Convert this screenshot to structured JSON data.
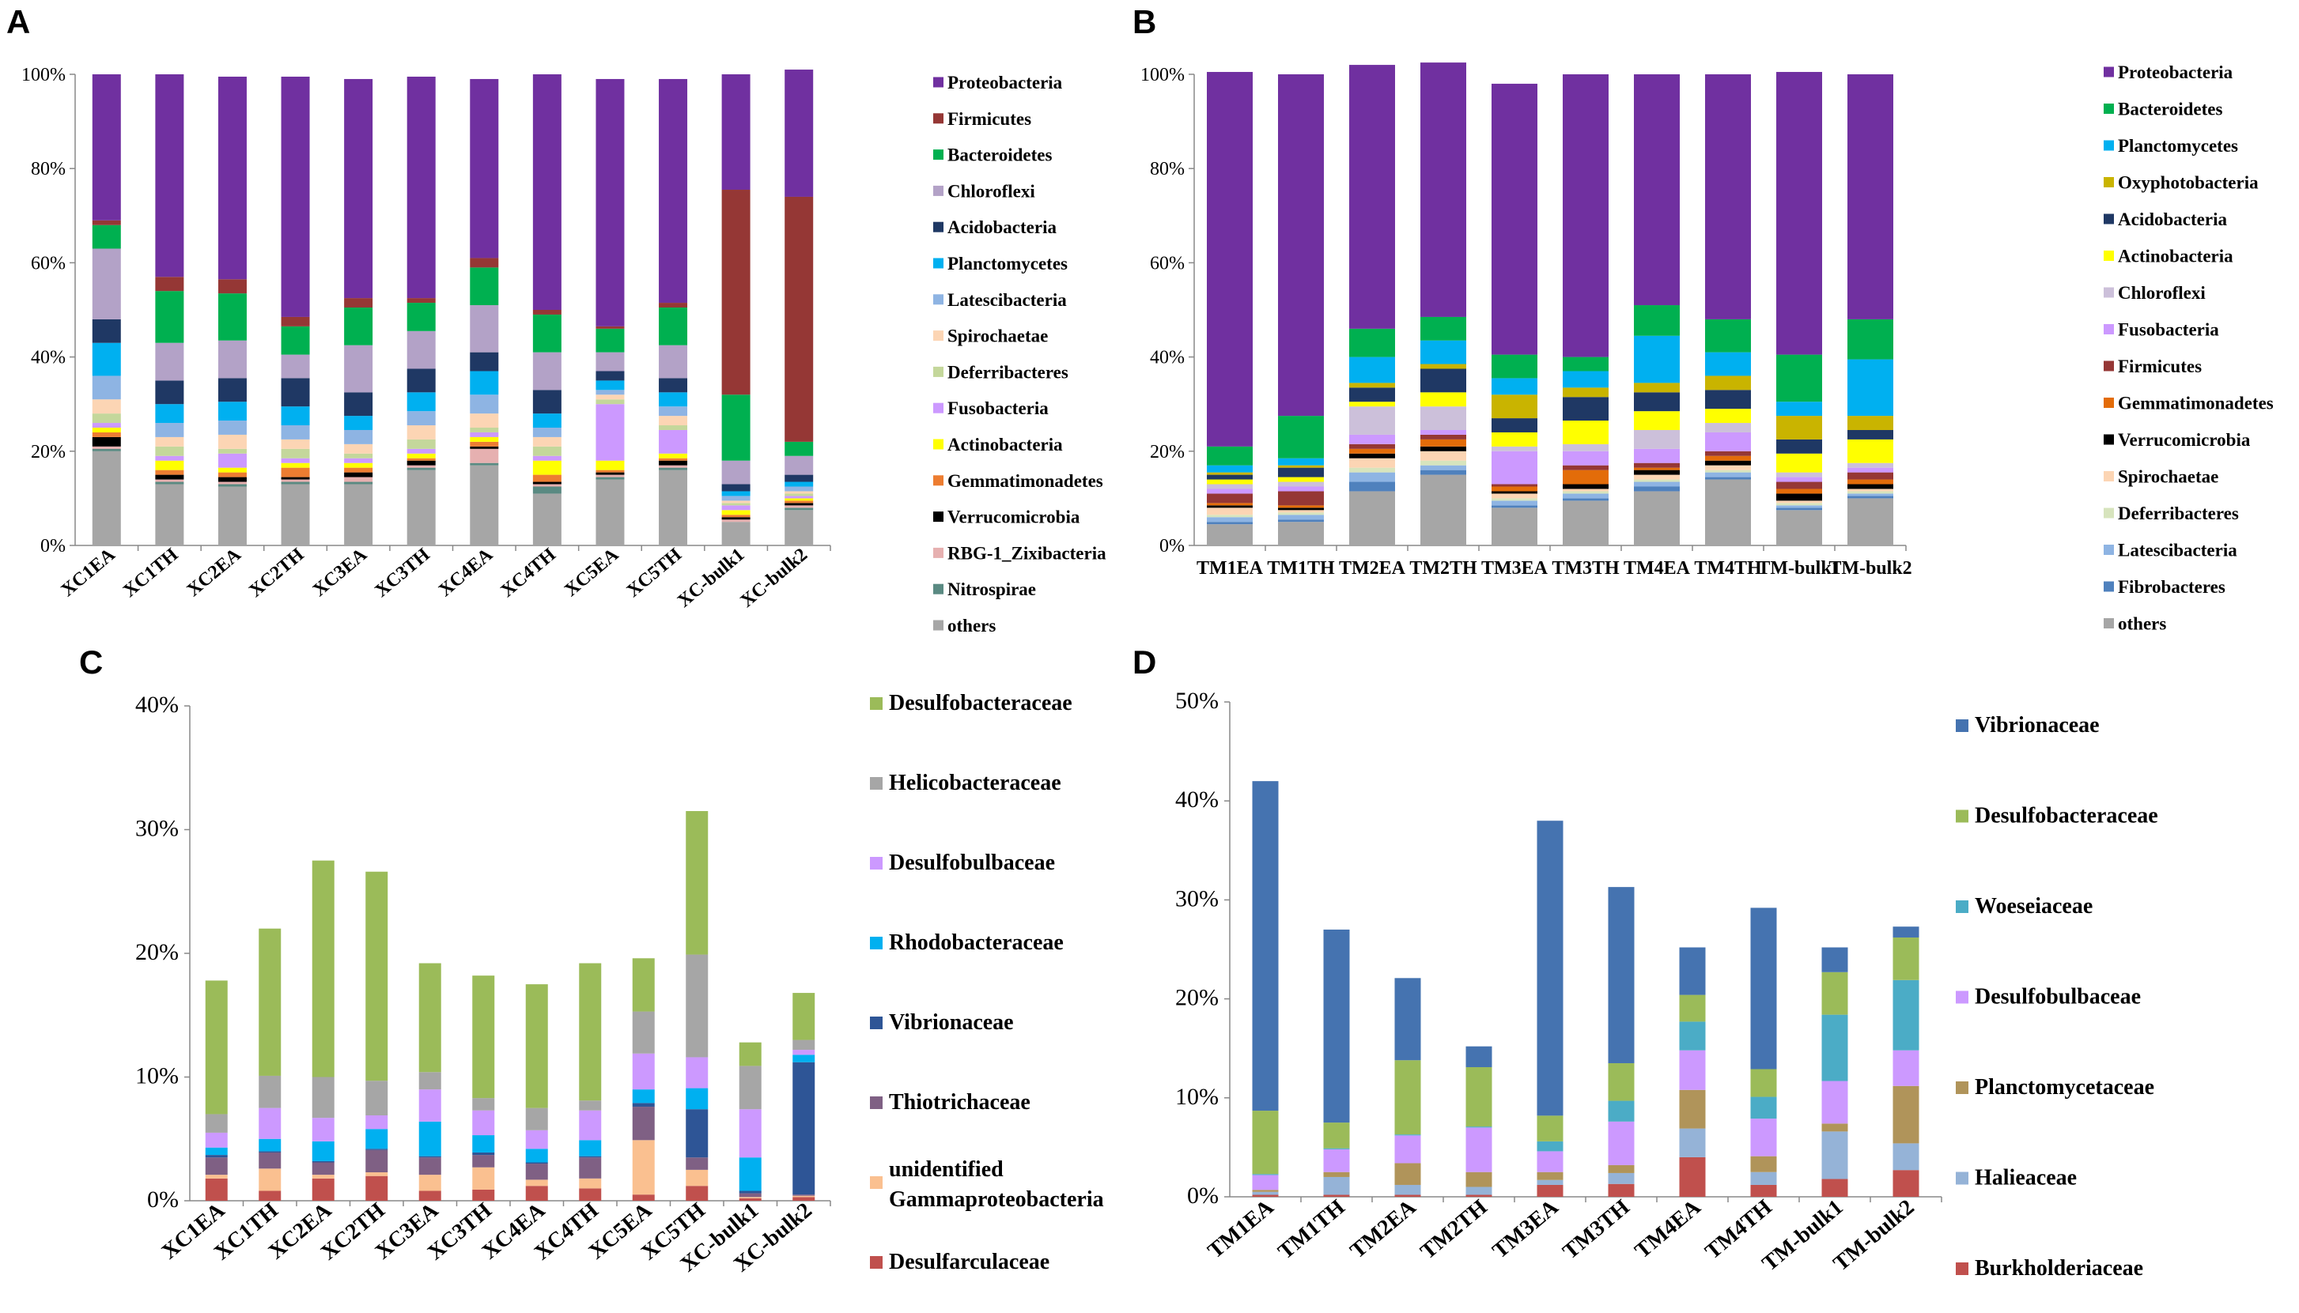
{
  "chart_data": [
    {
      "panel": "A",
      "type": "bar",
      "stacked": true,
      "ylim": [
        0,
        100
      ],
      "yticks": [
        "0%",
        "20%",
        "40%",
        "60%",
        "80%",
        "100%"
      ],
      "categories": [
        "XC1EA",
        "XC1TH",
        "XC2EA",
        "XC2TH",
        "XC3EA",
        "XC3TH",
        "XC4EA",
        "XC4TH",
        "XC5EA",
        "XC5TH",
        "XC-bulk1",
        "XC-bulk2"
      ],
      "series": [
        {
          "name": "others",
          "color": "#a6a6a6",
          "values": [
            20,
            13,
            12.5,
            13,
            13,
            16,
            17,
            11,
            14,
            16,
            5,
            7.5
          ]
        },
        {
          "name": "Nitrospirae",
          "color": "#5a8a82",
          "values": [
            0.5,
            0.5,
            0.5,
            0.5,
            0.5,
            0.5,
            0.5,
            1.5,
            0.5,
            0.5,
            0,
            0.5
          ]
        },
        {
          "name": "RBG-1_Zixibacteria",
          "color": "#e6b0b0",
          "values": [
            0.5,
            0.5,
            0.5,
            0.5,
            1,
            0.5,
            3,
            0.5,
            0.5,
            0.5,
            0.5,
            0.5
          ]
        },
        {
          "name": "Verrucomicrobia",
          "color": "#000000",
          "values": [
            2,
            1,
            1,
            0.5,
            1,
            1,
            0.5,
            0.5,
            0.5,
            1,
            0.5,
            0.5
          ]
        },
        {
          "name": "Gemmatimonadetes",
          "color": "#ed7d31",
          "values": [
            1,
            1,
            1,
            2,
            1,
            0.5,
            1,
            1.5,
            0.5,
            0.5,
            0.5,
            0.5
          ]
        },
        {
          "name": "Actinobacteria",
          "color": "#ffff00",
          "values": [
            1,
            2,
            1,
            1,
            1,
            1,
            1,
            3,
            2,
            1,
            1,
            0.5
          ]
        },
        {
          "name": "Fusobacteria",
          "color": "#cc99ff",
          "values": [
            1,
            1,
            3,
            1,
            1,
            1,
            1,
            1,
            12,
            5,
            1,
            0.5
          ]
        },
        {
          "name": "Deferribacteres",
          "color": "#c4d79b",
          "values": [
            2,
            2,
            1,
            2,
            1,
            2,
            1,
            2,
            1,
            1,
            0.5,
            0.5
          ]
        },
        {
          "name": "Spirochaetae",
          "color": "#fcd5b4",
          "values": [
            3,
            2,
            3,
            2,
            2,
            3,
            3,
            2,
            1,
            2,
            0.5,
            0.5
          ]
        },
        {
          "name": "Latescibacteria",
          "color": "#8eb4e3",
          "values": [
            5,
            3,
            3,
            3,
            3,
            3,
            4,
            2,
            1,
            2,
            1,
            1
          ]
        },
        {
          "name": "Planctomycetes",
          "color": "#00b0f0",
          "values": [
            7,
            4,
            4,
            4,
            3,
            4,
            5,
            3,
            2,
            3,
            1,
            1
          ]
        },
        {
          "name": "Acidobacteria",
          "color": "#1f3864",
          "values": [
            5,
            5,
            5,
            6,
            5,
            5,
            4,
            5,
            2,
            3,
            1.5,
            1.5
          ]
        },
        {
          "name": "Chloroflexi",
          "color": "#b3a2c7",
          "values": [
            15,
            8,
            8,
            5,
            10,
            8,
            10,
            8,
            4,
            7,
            5,
            4
          ]
        },
        {
          "name": "Bacteroidetes",
          "color": "#00b050",
          "values": [
            5,
            11,
            10,
            6,
            8,
            6,
            8,
            8,
            5,
            8,
            14,
            3
          ]
        },
        {
          "name": "Firmicutes",
          "color": "#953735",
          "values": [
            1,
            3,
            3,
            2,
            2,
            1,
            2,
            1,
            0.5,
            1,
            43.5,
            52
          ]
        },
        {
          "name": "Proteobacteria",
          "color": "#7030a0",
          "values": [
            31,
            43,
            43,
            51,
            46.5,
            47,
            38,
            50,
            52.5,
            47.5,
            24.5,
            27
          ]
        }
      ]
    },
    {
      "panel": "B",
      "type": "bar",
      "stacked": true,
      "ylim": [
        0,
        100
      ],
      "yticks": [
        "0%",
        "20%",
        "40%",
        "60%",
        "80%",
        "100%"
      ],
      "categories": [
        "TM1EA",
        "TM1TH",
        "TM2EA",
        "TM2TH",
        "TM3EA",
        "TM3TH",
        "TM4EA",
        "TM4TH",
        "TM-bulk1",
        "TM-bulk2"
      ],
      "series": [
        {
          "name": "others",
          "color": "#a6a6a6",
          "values": [
            4.5,
            5,
            11.5,
            15,
            8,
            9.5,
            11.5,
            14,
            7.5,
            10
          ]
        },
        {
          "name": "Fibrobacteres",
          "color": "#4f81bd",
          "values": [
            0.5,
            0.5,
            2,
            1,
            0.5,
            0.5,
            1,
            0.5,
            0.5,
            0.5
          ]
        },
        {
          "name": "Latescibacteria",
          "color": "#8eb4e3",
          "values": [
            1,
            1,
            2,
            1,
            1,
            1,
            1,
            1,
            0.5,
            0.5
          ]
        },
        {
          "name": "Deferribacteres",
          "color": "#d7e4bd",
          "values": [
            0.5,
            0.5,
            1,
            1,
            0.5,
            0.5,
            0.5,
            0.5,
            0.5,
            0.5
          ]
        },
        {
          "name": "Spirochaetae",
          "color": "#fcd5b4",
          "values": [
            1.5,
            0.5,
            2,
            2,
            1,
            0.5,
            1,
            1,
            0.5,
            0.5
          ]
        },
        {
          "name": "Verrucomicrobia",
          "color": "#000000",
          "values": [
            0.5,
            0.5,
            1,
            1,
            0.5,
            1,
            1,
            1,
            1.5,
            1
          ]
        },
        {
          "name": "Gemmatimonadetes",
          "color": "#e36c09",
          "values": [
            0.5,
            0.5,
            1,
            1.5,
            1,
            3,
            0.5,
            1,
            1,
            1
          ]
        },
        {
          "name": "Firmicutes",
          "color": "#953735",
          "values": [
            2,
            3,
            1,
            1,
            0.5,
            1,
            1,
            1,
            1.5,
            1.5
          ]
        },
        {
          "name": "Fusobacteria",
          "color": "#cc99ff",
          "values": [
            1,
            1,
            2,
            1,
            7,
            3,
            3,
            4,
            1,
            1
          ]
        },
        {
          "name": "Chloroflexi",
          "color": "#ccc0da",
          "values": [
            1,
            1,
            6,
            5,
            1,
            1.5,
            4,
            2,
            1,
            1
          ]
        },
        {
          "name": "Actinobacteria",
          "color": "#ffff00",
          "values": [
            1,
            1,
            1,
            3,
            3,
            5,
            4,
            3,
            4,
            5
          ]
        },
        {
          "name": "Acidobacteria",
          "color": "#1f3864",
          "values": [
            1,
            2,
            3,
            5,
            3,
            5,
            4,
            4,
            3,
            2
          ]
        },
        {
          "name": "Oxyphotobacteria",
          "color": "#c9b400",
          "values": [
            0.5,
            0.5,
            1,
            1,
            5,
            2,
            2,
            3,
            5,
            3
          ]
        },
        {
          "name": "Planctomycetes",
          "color": "#00b0f0",
          "values": [
            1.5,
            1.5,
            5.5,
            5,
            3.5,
            3.5,
            10,
            5,
            3,
            12
          ]
        },
        {
          "name": "Bacteroidetes",
          "color": "#00b050",
          "values": [
            4,
            9,
            6,
            5,
            5,
            3,
            6.5,
            7,
            10,
            8.5
          ]
        },
        {
          "name": "Proteobacteria",
          "color": "#7030a0",
          "values": [
            79.5,
            72.5,
            56,
            54,
            57.5,
            60,
            49,
            52,
            60,
            52
          ]
        }
      ]
    },
    {
      "panel": "C",
      "type": "bar",
      "stacked": true,
      "ylim": [
        0,
        40
      ],
      "yticks": [
        "0%",
        "10%",
        "20%",
        "30%",
        "40%"
      ],
      "categories": [
        "XC1EA",
        "XC1TH",
        "XC2EA",
        "XC2TH",
        "XC3EA",
        "XC3TH",
        "XC4EA",
        "XC4TH",
        "XC5EA",
        "XC5TH",
        "XC-bulk1",
        "XC-bulk2"
      ],
      "series": [
        {
          "name": "Desulfarculaceae",
          "color": "#c0504d",
          "values": [
            1.8,
            0.8,
            1.8,
            2,
            0.8,
            0.9,
            1.2,
            1,
            0.5,
            1.2,
            0.2,
            0.3
          ]
        },
        {
          "name": "unidentified Gammaproteobacteria",
          "color": "#fac090",
          "values": [
            0.3,
            1.8,
            0.3,
            0.3,
            1.3,
            1.8,
            0.5,
            0.8,
            4.4,
            1.3,
            0.1,
            0.1
          ]
        },
        {
          "name": "Thiotrichaceae",
          "color": "#7f6084",
          "values": [
            1.4,
            1.3,
            1,
            1.8,
            1.4,
            1,
            1.3,
            1.7,
            2.7,
            1,
            0.3,
            0.1
          ]
        },
        {
          "name": "Vibrionaceae",
          "color": "#2e5596",
          "values": [
            0.2,
            0.1,
            0.1,
            0.1,
            0.1,
            0.2,
            0.1,
            0.1,
            0.3,
            3.9,
            0.2,
            10.7
          ]
        },
        {
          "name": "Rhodobacteraceae",
          "color": "#00b0f0",
          "values": [
            0.6,
            1,
            1.6,
            1.6,
            2.8,
            1.4,
            1.1,
            1.3,
            1.1,
            1.7,
            2.7,
            0.6
          ]
        },
        {
          "name": "Desulfobulbaceae",
          "color": "#cc99ff",
          "values": [
            1.2,
            2.5,
            1.9,
            1.1,
            2.6,
            2,
            1.5,
            2.4,
            2.9,
            2.5,
            3.9,
            0.4
          ]
        },
        {
          "name": "Helicobacteraceae",
          "color": "#a6a6a6",
          "values": [
            1.5,
            2.6,
            3.3,
            2.8,
            1.4,
            1,
            1.8,
            0.8,
            3.4,
            8.3,
            3.5,
            0.8
          ]
        },
        {
          "name": "Desulfobacteraceae",
          "color": "#9bbb59",
          "values": [
            10.8,
            11.9,
            17.5,
            16.9,
            8.8,
            9.9,
            10,
            11.1,
            4.3,
            11.6,
            1.9,
            3.8
          ]
        }
      ]
    },
    {
      "panel": "D",
      "type": "bar",
      "stacked": true,
      "ylim": [
        0,
        50
      ],
      "yticks": [
        "0%",
        "10%",
        "20%",
        "30%",
        "40%",
        "50%"
      ],
      "categories": [
        "TM1EA",
        "TM1TH",
        "TM2EA",
        "TM2TH",
        "TM3EA",
        "TM3TH",
        "TM4EA",
        "TM4TH",
        "TM-bulk1",
        "TM-bulk2"
      ],
      "series": [
        {
          "name": "Burkholderiaceae",
          "color": "#c0504d",
          "values": [
            0.2,
            0.2,
            0.2,
            0.2,
            1.2,
            1.3,
            4,
            1.2,
            1.8,
            2.7
          ]
        },
        {
          "name": "Halieaceae",
          "color": "#95b3d7",
          "values": [
            0.3,
            1.8,
            1,
            0.8,
            0.5,
            1.1,
            2.9,
            1.3,
            4.8,
            2.7
          ]
        },
        {
          "name": "Planctomycetaceae",
          "color": "#b0945a",
          "values": [
            0.2,
            0.5,
            2.2,
            1.5,
            0.8,
            0.8,
            3.9,
            1.6,
            0.8,
            5.8
          ]
        },
        {
          "name": "Desulfobulbaceae",
          "color": "#cc99ff",
          "values": [
            1.5,
            2.3,
            2.8,
            4.5,
            2.1,
            4.4,
            4,
            3.8,
            4.3,
            3.6
          ]
        },
        {
          "name": "Woeseiaceae",
          "color": "#4bacc6",
          "values": [
            0.1,
            0.1,
            0.1,
            0.1,
            1,
            2.1,
            2.9,
            2.2,
            6.7,
            7.1
          ]
        },
        {
          "name": "Desulfobacteraceae",
          "color": "#9bbb59",
          "values": [
            6.4,
            2.6,
            7.5,
            6,
            2.6,
            3.8,
            2.7,
            2.8,
            4.3,
            4.3
          ]
        },
        {
          "name": "Vibrionaceae",
          "color": "#4573b0",
          "values": [
            33.3,
            19.5,
            8.3,
            2.1,
            29.8,
            17.8,
            4.8,
            16.3,
            2.5,
            1.1
          ]
        }
      ]
    }
  ]
}
